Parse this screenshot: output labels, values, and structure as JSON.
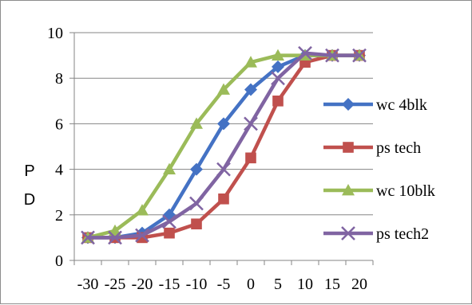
{
  "chart_data": {
    "type": "line",
    "x": [
      -30,
      -25,
      -20,
      -15,
      -10,
      -5,
      0,
      5,
      10,
      15,
      20
    ],
    "x_tick_labels": [
      "-30",
      "-25",
      "-20",
      "-15",
      "-10",
      "-5",
      "0",
      "5",
      "10",
      "15",
      "20"
    ],
    "ylim": [
      0,
      10
    ],
    "y_ticks": [
      0,
      2,
      4,
      6,
      8,
      10
    ],
    "y_tick_labels": [
      "0",
      "2",
      "4",
      "6",
      "8",
      "10"
    ],
    "ylabel_lines": [
      "P",
      "D"
    ],
    "xlabel": "",
    "title": "",
    "grid": "horizontal",
    "legend": "right",
    "series": [
      {
        "name": "wc 4blk",
        "color": "#4472c4",
        "marker": "diamond",
        "values": [
          1,
          1,
          1.2,
          2,
          4,
          6,
          7.5,
          8.5,
          9,
          9,
          9
        ]
      },
      {
        "name": "ps tech",
        "color": "#c0504d",
        "marker": "square",
        "values": [
          1,
          1,
          1,
          1.2,
          1.6,
          2.7,
          4.5,
          7,
          8.7,
          9,
          9
        ]
      },
      {
        "name": "wc 10blk",
        "color": "#9bbb59",
        "marker": "triangle",
        "values": [
          1,
          1.3,
          2.2,
          4,
          6,
          7.5,
          8.7,
          9,
          9,
          9,
          9
        ]
      },
      {
        "name": "ps tech2",
        "color": "#8064a2",
        "marker": "x",
        "values": [
          1,
          1,
          1.1,
          1.7,
          2.5,
          4,
          6,
          8,
          9.1,
          9,
          9
        ]
      }
    ]
  }
}
